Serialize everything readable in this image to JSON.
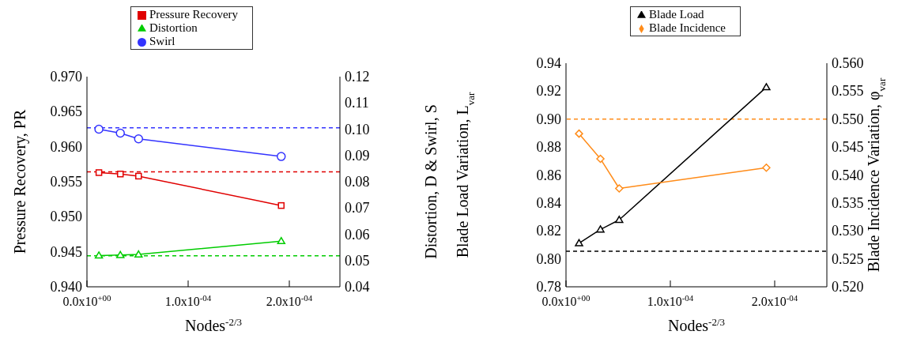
{
  "chart_data": [
    {
      "type": "line",
      "xlabel": "Nodes$^{-2/3}$",
      "ylabel": "Pressure Recovery, PR",
      "y2label": "Distortion, D & Swirl, S",
      "xlim": [
        0,
        0.00025
      ],
      "xticks": [
        {
          "value": 0,
          "label": "0.0x10$^{+00}$"
        },
        {
          "value": 0.0001,
          "label": "1.0x10$^{-04}$"
        },
        {
          "value": 0.0002,
          "label": "2.0x10$^{-04}$"
        }
      ],
      "ylim": [
        0.94,
        0.97
      ],
      "yticks": [
        {
          "value": 0.94,
          "label": "0.940"
        },
        {
          "value": 0.945,
          "label": "0.945"
        },
        {
          "value": 0.95,
          "label": "0.950"
        },
        {
          "value": 0.955,
          "label": "0.955"
        },
        {
          "value": 0.96,
          "label": "0.960"
        },
        {
          "value": 0.965,
          "label": "0.965"
        },
        {
          "value": 0.97,
          "label": "0.970"
        }
      ],
      "y2lim": [
        0.04,
        0.12
      ],
      "y2ticks": [
        {
          "value": 0.04,
          "label": "0.04"
        },
        {
          "value": 0.05,
          "label": "0.05"
        },
        {
          "value": 0.06,
          "label": "0.06"
        },
        {
          "value": 0.07,
          "label": "0.07"
        },
        {
          "value": 0.08,
          "label": "0.08"
        },
        {
          "value": 0.09,
          "label": "0.09"
        },
        {
          "value": 0.1,
          "label": "0.10"
        },
        {
          "value": 0.11,
          "label": "0.11"
        },
        {
          "value": 0.12,
          "label": "0.12"
        }
      ],
      "legend": "top",
      "line_style": "solid",
      "x": [
        1.18e-05,
        3.3e-05,
        5.1e-05,
        0.000192
      ],
      "series": [
        {
          "name": "Pressure Recovery",
          "color": "#e00000",
          "marker": "square",
          "values": [
            0.9563,
            0.9561,
            0.9558,
            0.9516
          ]
        },
        {
          "name": "Distortion",
          "color": "#00cc00",
          "marker": "triangle",
          "axis": "y2",
          "values": [
            0.0519,
            0.0521,
            0.0523,
            0.0574
          ]
        },
        {
          "name": "Swirl",
          "color": "#3333ff",
          "marker": "circle",
          "axis": "y2",
          "values": [
            0.1,
            0.0985,
            0.0963,
            0.0896
          ]
        }
      ],
      "ref_lines": [
        {
          "axis": "y",
          "value": 0.9564,
          "label": null,
          "color": "#e00000",
          "line_style": "dashed"
        },
        {
          "axis": "y2",
          "value": 0.0518,
          "label": null,
          "color": "#00cc00",
          "line_style": "dashed"
        },
        {
          "axis": "y2",
          "value": 0.1005,
          "label": null,
          "color": "#3333ff",
          "line_style": "dashed"
        }
      ]
    },
    {
      "type": "line",
      "xlabel": "Nodes$^{-2/3}$",
      "ylabel": "Blade Load Variation, L$_{var}$",
      "y2label": "Blade Incidence Variation, φ$_{var}$",
      "xlim": [
        0,
        0.00025
      ],
      "xticks": [
        {
          "value": 0,
          "label": "0.0x10$^{+00}$"
        },
        {
          "value": 0.0001,
          "label": "1.0x10$^{-04}$"
        },
        {
          "value": 0.0002,
          "label": "2.0x10$^{-04}$"
        }
      ],
      "ylim": [
        0.78,
        0.94
      ],
      "yticks": [
        {
          "value": 0.78,
          "label": "0.78"
        },
        {
          "value": 0.8,
          "label": "0.80"
        },
        {
          "value": 0.82,
          "label": "0.82"
        },
        {
          "value": 0.84,
          "label": "0.84"
        },
        {
          "value": 0.86,
          "label": "0.86"
        },
        {
          "value": 0.88,
          "label": "0.88"
        },
        {
          "value": 0.9,
          "label": "0.90"
        },
        {
          "value": 0.92,
          "label": "0.92"
        },
        {
          "value": 0.94,
          "label": "0.94"
        }
      ],
      "y2lim": [
        0.52,
        0.56
      ],
      "y2ticks": [
        {
          "value": 0.52,
          "label": "0.520"
        },
        {
          "value": 0.525,
          "label": "0.525"
        },
        {
          "value": 0.53,
          "label": "0.530"
        },
        {
          "value": 0.535,
          "label": "0.535"
        },
        {
          "value": 0.54,
          "label": "0.540"
        },
        {
          "value": 0.545,
          "label": "0.545"
        },
        {
          "value": 0.55,
          "label": "0.550"
        },
        {
          "value": 0.555,
          "label": "0.555"
        },
        {
          "value": 0.56,
          "label": "0.560"
        }
      ],
      "legend": "top",
      "line_style": "solid",
      "x": [
        1.25e-05,
        3.3e-05,
        5.1e-05,
        0.000192
      ],
      "series": [
        {
          "name": "Blade Load",
          "color": "#000000",
          "marker": "triangle",
          "values": [
            0.8112,
            0.821,
            0.8279,
            0.9228
          ]
        },
        {
          "name": "Blade Incidence",
          "color": "#ff8c1a",
          "marker": "diamond",
          "axis": "y2",
          "values": [
            0.5474,
            0.5429,
            0.5376,
            0.5413
          ]
        }
      ],
      "ref_lines": [
        {
          "axis": "y",
          "value": 0.8054,
          "label": null,
          "color": "#000000",
          "line_style": "dashed"
        },
        {
          "axis": "y2",
          "value": 0.55,
          "label": null,
          "color": "#ff8c1a",
          "line_style": "dashed"
        }
      ]
    }
  ]
}
